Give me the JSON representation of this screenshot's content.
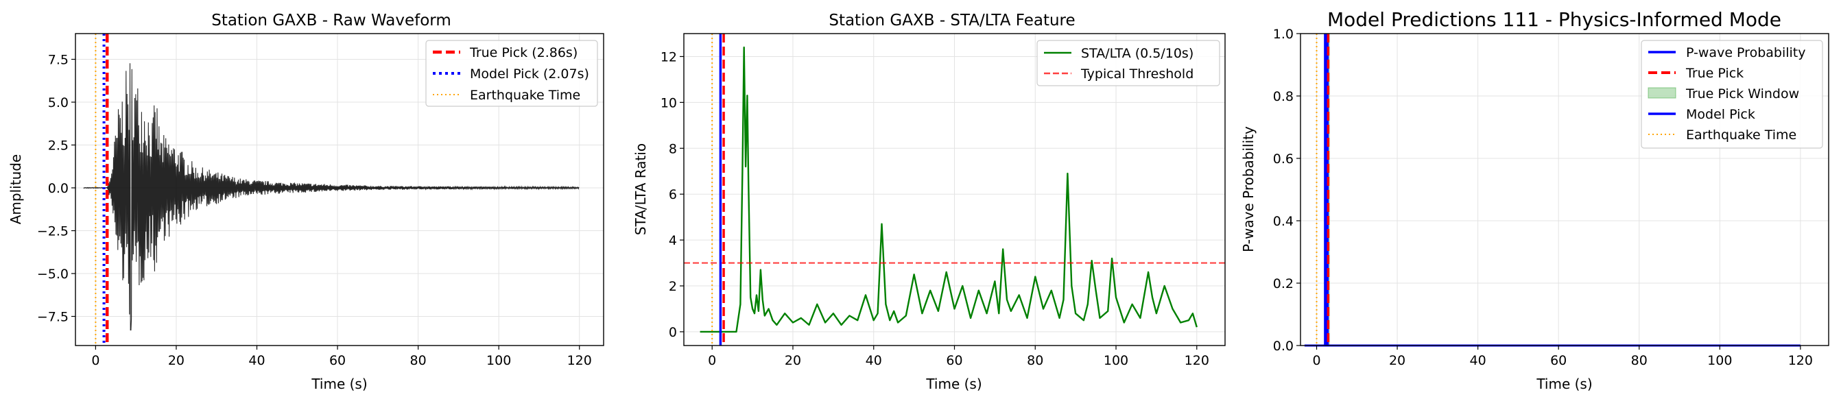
{
  "chart_data": [
    {
      "type": "line",
      "title": "Station GAXB - Raw Waveform",
      "xlabel": "Time (s)",
      "ylabel": "Amplitude",
      "xlim": [
        -5,
        126
      ],
      "ylim": [
        -9.2,
        9.0
      ],
      "xticks": [
        0,
        20,
        40,
        60,
        80,
        100,
        120
      ],
      "yticks": [
        -7.5,
        -5.0,
        -2.5,
        0.0,
        2.5,
        5.0,
        7.5
      ],
      "ytick_labels": [
        "−7.5",
        "−5.0",
        "−2.5",
        "0.0",
        "2.5",
        "5.0",
        "7.5"
      ],
      "grid": true,
      "legend_position": "top-right",
      "waveform": {
        "name": "",
        "color": "#000000",
        "t_start": -3,
        "t_end": 120,
        "onset": 2.86,
        "x_peak": [
          3.5,
          5,
          6,
          7,
          8,
          9,
          10,
          11,
          12,
          13,
          14,
          15,
          16,
          18,
          20,
          22,
          25,
          28,
          32,
          36,
          40,
          45,
          50,
          60,
          70,
          80,
          100,
          120
        ],
        "y_envelope": [
          0.5,
          3.5,
          5.5,
          6.0,
          7.5,
          8.2,
          6.5,
          6.0,
          5.5,
          4.8,
          4.0,
          5.6,
          3.2,
          3.0,
          2.6,
          2.0,
          1.3,
          1.1,
          0.8,
          0.55,
          0.45,
          0.35,
          0.3,
          0.2,
          0.12,
          0.1,
          0.07,
          0.05
        ],
        "min_value": -8.3
      },
      "vlines": [
        {
          "name": "True Pick (2.86s)",
          "x": 2.86,
          "color": "#ff0000",
          "style": "dashed"
        },
        {
          "name": "Model Pick (2.07s)",
          "x": 2.07,
          "color": "#0000ff",
          "style": "dotted"
        },
        {
          "name": "Earthquake Time",
          "x": 0.0,
          "color": "#ffa500",
          "style": "dotted"
        }
      ]
    },
    {
      "type": "line",
      "title": "Station GAXB - STA/LTA Feature",
      "xlabel": "Time (s)",
      "ylabel": "STA/LTA Ratio",
      "xlim": [
        -7,
        127
      ],
      "ylim": [
        -0.6,
        13.0
      ],
      "xticks": [
        0,
        20,
        40,
        60,
        80,
        100,
        120
      ],
      "yticks": [
        0,
        2,
        4,
        6,
        8,
        10,
        12
      ],
      "grid": true,
      "legend_position": "top-right",
      "series": [
        {
          "name": "STA/LTA (0.5/10s)",
          "color": "#008000",
          "x": [
            -3,
            3,
            6,
            7,
            7.5,
            7.9,
            8.3,
            8.7,
            9.0,
            9.5,
            10,
            10.5,
            11,
            11.5,
            12,
            12.5,
            13,
            14,
            15,
            16,
            18,
            20,
            22,
            24,
            26,
            28,
            30,
            32,
            34,
            36,
            38,
            40,
            41,
            42,
            43,
            44,
            45,
            46,
            48,
            50,
            52,
            54,
            56,
            58,
            60,
            62,
            64,
            66,
            68,
            70,
            71,
            72,
            73,
            74,
            76,
            78,
            80,
            82,
            84,
            86,
            87,
            88,
            89,
            90,
            92,
            93,
            94,
            95,
            96,
            98,
            99,
            100,
            102,
            104,
            106,
            108,
            109,
            110,
            112,
            114,
            116,
            118,
            119,
            120
          ],
          "y": [
            0,
            0,
            0,
            1.2,
            7.0,
            12.4,
            7.2,
            10.3,
            6.5,
            1.5,
            1.0,
            0.8,
            1.6,
            0.9,
            2.7,
            1.4,
            0.7,
            1.0,
            0.5,
            0.3,
            0.8,
            0.4,
            0.6,
            0.3,
            1.2,
            0.4,
            0.8,
            0.3,
            0.7,
            0.5,
            1.6,
            0.5,
            0.8,
            4.7,
            1.2,
            0.5,
            0.9,
            0.4,
            0.7,
            2.5,
            0.8,
            1.8,
            0.9,
            2.6,
            1.0,
            2.0,
            0.6,
            1.8,
            0.8,
            2.2,
            0.8,
            3.6,
            1.4,
            0.9,
            1.6,
            0.6,
            2.4,
            1.0,
            1.8,
            0.6,
            1.4,
            6.9,
            2.0,
            0.8,
            0.5,
            1.2,
            3.1,
            1.8,
            0.6,
            0.9,
            3.2,
            1.5,
            0.4,
            1.2,
            0.6,
            2.6,
            1.5,
            0.8,
            2.0,
            1.0,
            0.4,
            0.5,
            0.8,
            0.2
          ]
        }
      ],
      "hlines": [
        {
          "name": "Typical Threshold",
          "y": 3.0,
          "color": "#ff0000",
          "style": "dashed"
        }
      ],
      "vlines": [
        {
          "name": "",
          "x": 2.86,
          "color": "#ff0000",
          "style": "dashed"
        },
        {
          "name": "",
          "x": 2.07,
          "color": "#0000ff",
          "style": "solid"
        },
        {
          "name": "",
          "x": 0.0,
          "color": "#ffa500",
          "style": "dotted"
        }
      ]
    },
    {
      "type": "line",
      "title": "Model Predictions 111 - Physics-Informed Mode",
      "xlabel": "Time (s)",
      "ylabel": "P-wave Probability",
      "xlim": [
        -4,
        127
      ],
      "ylim": [
        0.0,
        1.0
      ],
      "xticks": [
        0,
        20,
        40,
        60,
        80,
        100,
        120
      ],
      "yticks": [
        0.0,
        0.2,
        0.4,
        0.6,
        0.8,
        1.0
      ],
      "ytick_labels": [
        "0.0",
        "0.2",
        "0.4",
        "0.6",
        "0.8",
        "1.0"
      ],
      "grid": true,
      "legend_position": "top-right",
      "series": [
        {
          "name": "P-wave Probability",
          "color": "#0000ff",
          "x": [
            -3,
            120
          ],
          "y": [
            0,
            0
          ]
        }
      ],
      "shaded_window": {
        "name": "True Pick Window",
        "x0": 2.4,
        "x1": 3.3,
        "color": "#2ca02c"
      },
      "vlines": [
        {
          "name": "True Pick",
          "x": 2.86,
          "color": "#ff0000",
          "style": "dashed"
        },
        {
          "name": "Model Pick",
          "x": 2.07,
          "color": "#0000ff",
          "style": "solid"
        },
        {
          "name": "Earthquake Time",
          "x": 0.0,
          "color": "#ffa500",
          "style": "dotted"
        }
      ]
    }
  ]
}
